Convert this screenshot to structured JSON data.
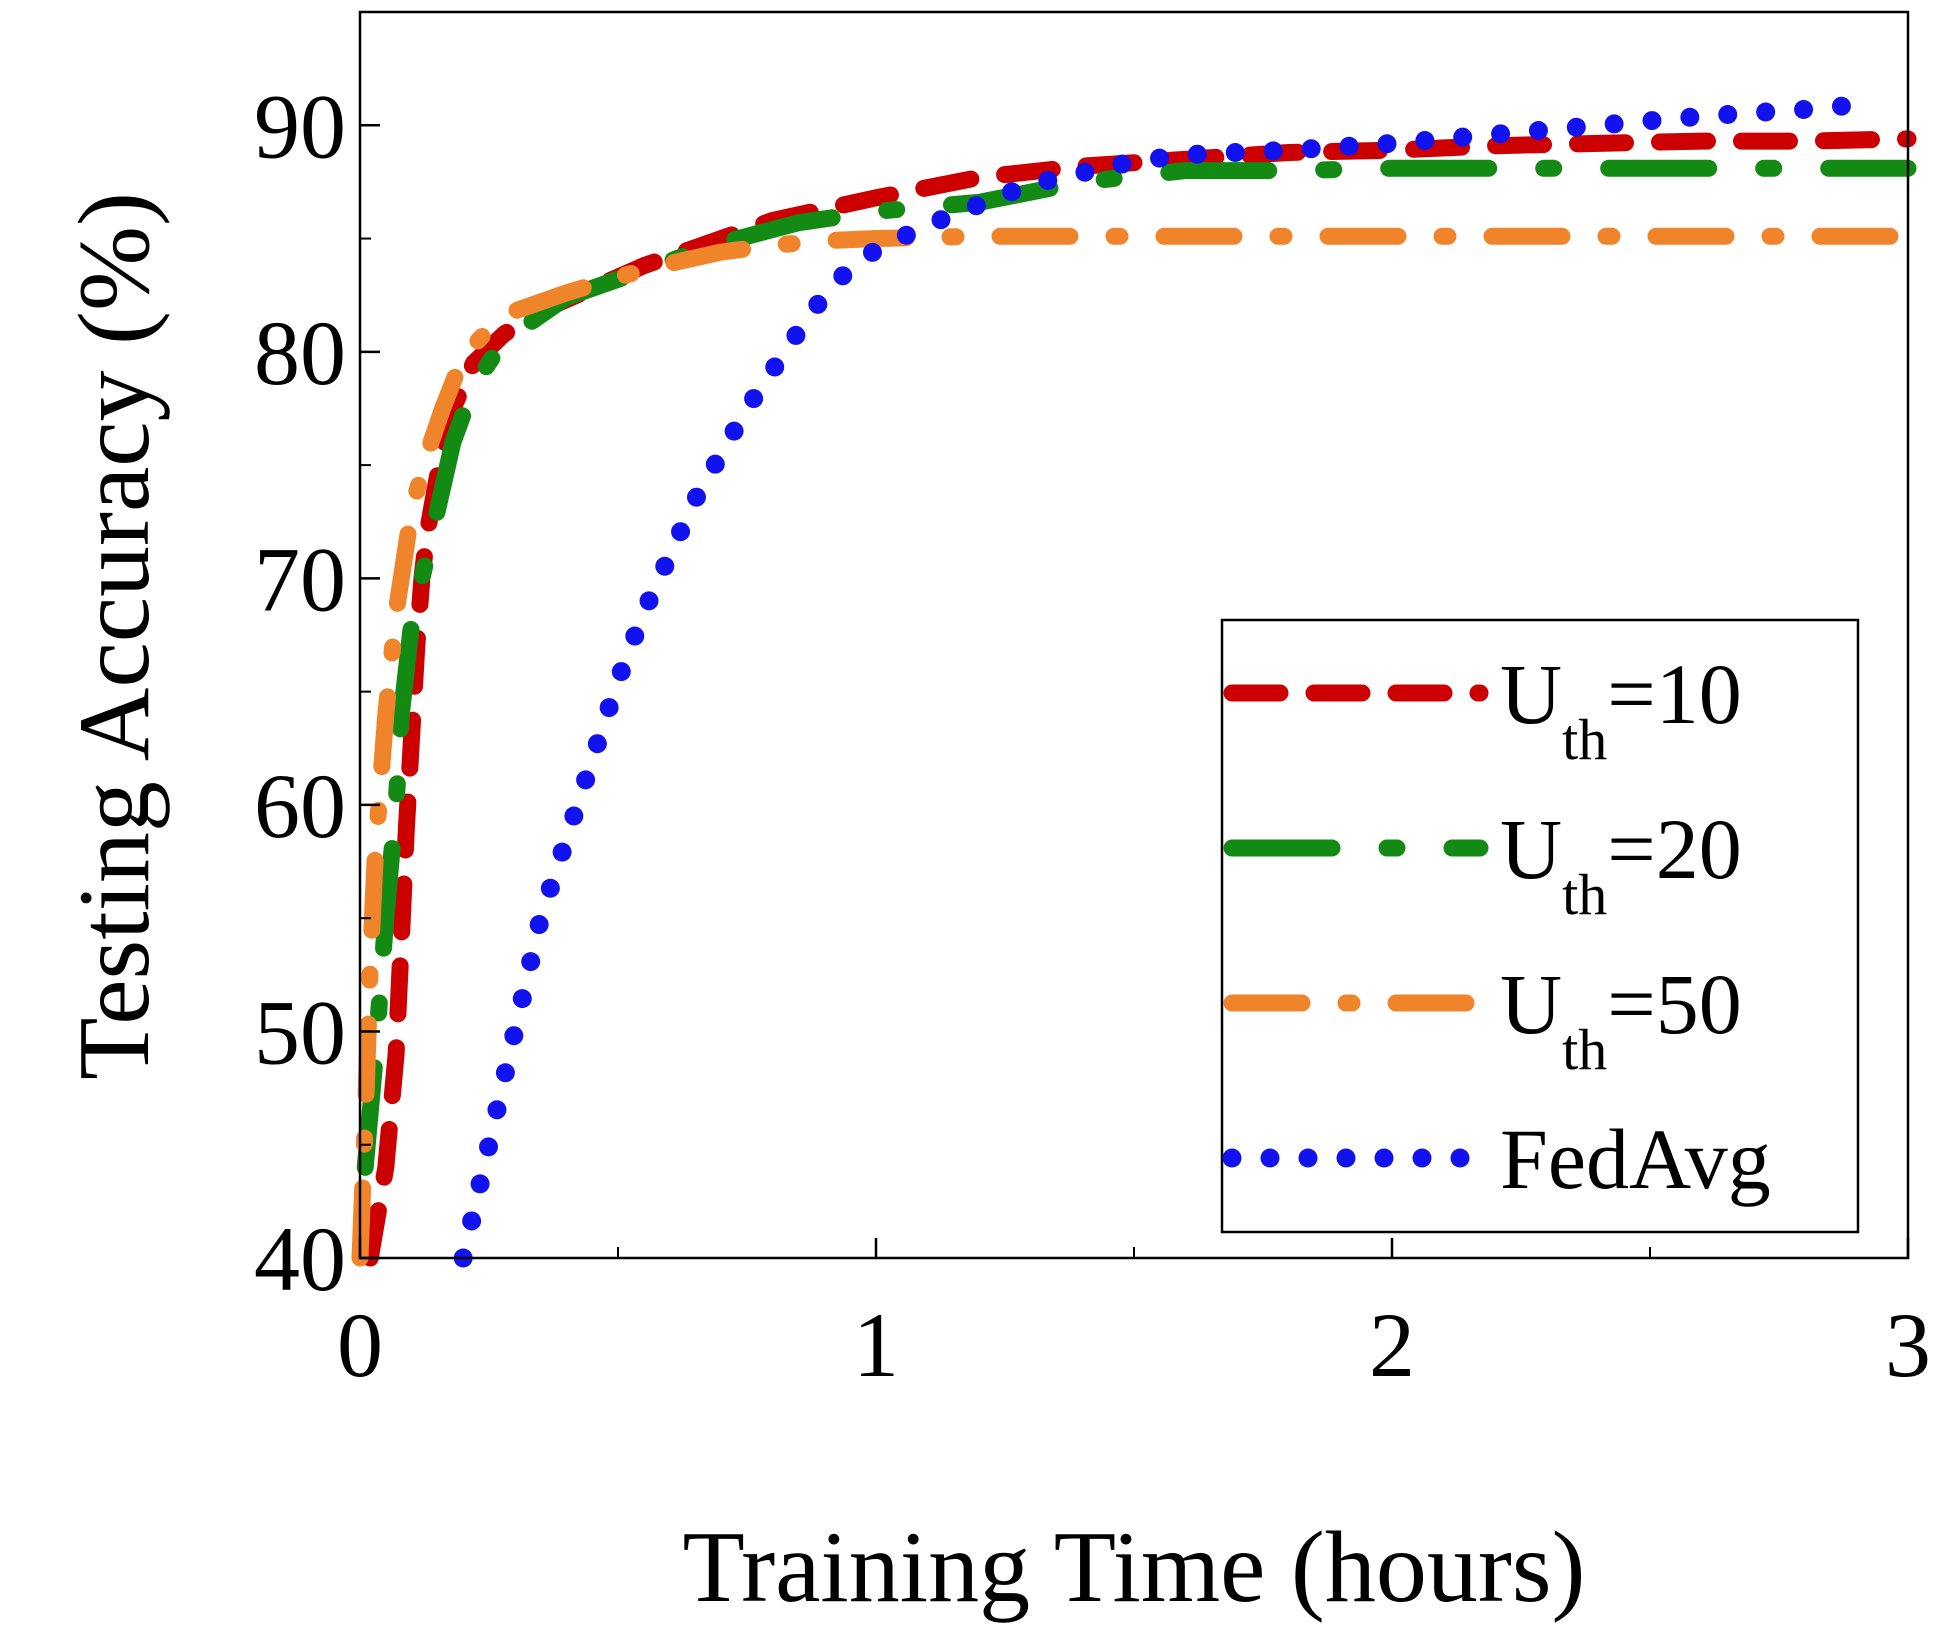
{
  "chart_data": {
    "type": "line",
    "title": "",
    "xlabel": "Training Time (hours)",
    "ylabel": "Testing Accuracy (%)",
    "xlim": [
      0,
      3
    ],
    "ylim": [
      40,
      95
    ],
    "xticks": [
      0,
      1,
      2,
      3
    ],
    "yticks": [
      40,
      50,
      60,
      70,
      80,
      90
    ],
    "xtick_labels": [
      "0",
      "1",
      "2",
      "3"
    ],
    "ytick_labels": [
      "40",
      "50",
      "60",
      "70",
      "80",
      "90"
    ],
    "grid": false,
    "legend_position": "bottom-right",
    "series": [
      {
        "name": "U_th=10",
        "legend_main": "U",
        "legend_sub": "th",
        "legend_value": "=10",
        "color": "#cc0000",
        "style": "dashed",
        "x": [
          0.02,
          0.05,
          0.07,
          0.08,
          0.09,
          0.1,
          0.11,
          0.12,
          0.13,
          0.15,
          0.18,
          0.22,
          0.28,
          0.35,
          0.45,
          0.55,
          0.65,
          0.8,
          1.0,
          1.2,
          1.4,
          1.6,
          1.8,
          2.0,
          2.2,
          2.4,
          2.6,
          2.8,
          3.0
        ],
        "y": [
          40,
          44,
          49,
          54,
          59,
          63,
          67,
          70,
          72,
          74.5,
          77.5,
          79.5,
          80.8,
          81.8,
          82.8,
          83.8,
          84.6,
          85.8,
          86.8,
          87.7,
          88.2,
          88.5,
          88.8,
          88.9,
          89.1,
          89.2,
          89.3,
          89.3,
          89.4
        ]
      },
      {
        "name": "U_th=20",
        "legend_main": "U",
        "legend_sub": "th",
        "legend_value": "=20",
        "color": "#138a13",
        "style": "long-dash-dot",
        "x": [
          0.01,
          0.03,
          0.05,
          0.07,
          0.08,
          0.1,
          0.12,
          0.15,
          0.18,
          0.22,
          0.27,
          0.33,
          0.4,
          0.5,
          0.6,
          0.7,
          0.85,
          1.0,
          1.2,
          1.4,
          1.6,
          1.8,
          2.0,
          2.2,
          2.4,
          2.6,
          2.8,
          3.0
        ],
        "y": [
          44,
          49,
          55,
          60,
          64,
          68,
          70,
          73,
          76,
          78.5,
          80.2,
          81.3,
          82.4,
          83.2,
          84,
          84.8,
          85.7,
          86.2,
          86.6,
          87.5,
          88,
          88,
          88.1,
          88.1,
          88.1,
          88.1,
          88.1,
          88.1
        ]
      },
      {
        "name": "U_th=50",
        "legend_main": "U",
        "legend_sub": "th",
        "legend_value": "=50",
        "color": "#f0842a",
        "style": "dash-dot",
        "x": [
          0.0,
          0.01,
          0.02,
          0.03,
          0.04,
          0.05,
          0.07,
          0.1,
          0.13,
          0.16,
          0.2,
          0.25,
          0.3,
          0.4,
          0.5,
          0.6,
          0.7,
          0.8,
          0.9,
          1.0,
          1.2,
          1.5,
          2.0,
          2.5,
          3.0
        ],
        "y": [
          40,
          46,
          53,
          58,
          61,
          64,
          68.5,
          73,
          75.5,
          77.5,
          79.8,
          81,
          81.8,
          82.6,
          83.3,
          83.9,
          84.4,
          84.7,
          84.9,
          85.0,
          85.1,
          85.1,
          85.1,
          85.1,
          85.1
        ]
      },
      {
        "name": "FedAvg",
        "legend_main": "FedAvg",
        "legend_sub": "",
        "legend_value": "",
        "color": "#1212ee",
        "style": "dotted",
        "x": [
          0.2,
          0.25,
          0.3,
          0.35,
          0.4,
          0.45,
          0.5,
          0.55,
          0.6,
          0.65,
          0.7,
          0.75,
          0.8,
          0.85,
          0.9,
          0.95,
          1.0,
          1.1,
          1.2,
          1.3,
          1.4,
          1.5,
          1.6,
          1.8,
          2.0,
          2.2,
          2.4,
          2.6,
          2.8,
          2.9
        ],
        "y": [
          40,
          45,
          50,
          55,
          58.5,
          62,
          65.5,
          68.5,
          71,
          73.5,
          75.5,
          77.5,
          79.2,
          80.9,
          82.5,
          83.7,
          84.5,
          85.6,
          86.5,
          87.4,
          87.9,
          88.4,
          88.7,
          88.9,
          89.2,
          89.6,
          90.0,
          90.4,
          90.7,
          90.9
        ]
      }
    ]
  }
}
